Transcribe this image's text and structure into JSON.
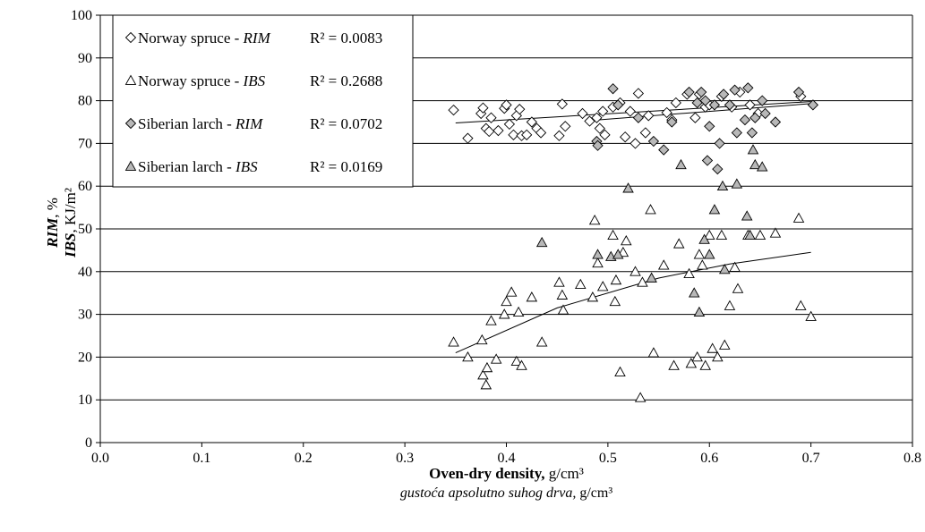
{
  "chart_data": {
    "type": "scatter",
    "xlim": [
      0.0,
      0.8
    ],
    "ylim": [
      0,
      100
    ],
    "x_ticks": [
      "0.0",
      "0.1",
      "0.2",
      "0.3",
      "0.4",
      "0.5",
      "0.6",
      "0.7",
      "0.8"
    ],
    "y_ticks": [
      "0",
      "10",
      "20",
      "30",
      "40",
      "50",
      "60",
      "70",
      "80",
      "90",
      "100"
    ],
    "grid": "horizontal",
    "legend_position": "top-left",
    "xlabel": {
      "line1_bold": "Oven-dry density,",
      "line1_unit": " g/cm³",
      "line2_italic": "gustoća apsolutno suhog drva,",
      "line2_unit": " g/cm³"
    },
    "ylabel": {
      "line1_bold_italic": "RIM",
      "line1_unit": ", %",
      "line2_bold_italic": "IBS",
      "line2_unit": ", KJ/m²"
    },
    "series": [
      {
        "name": "Norway spruce - RIM",
        "name_plain": "Norway spruce - ",
        "name_italic": "RIM",
        "r2": "R² = 0.0083",
        "marker": "diamond",
        "fill": "#ffffff",
        "trend": [
          [
            0.35,
            74.8
          ],
          [
            0.7,
            79.8
          ]
        ],
        "points": [
          [
            0.348,
            77.8
          ],
          [
            0.362,
            71.2
          ],
          [
            0.375,
            77.0
          ],
          [
            0.377,
            78.3
          ],
          [
            0.38,
            73.5
          ],
          [
            0.383,
            72.8
          ],
          [
            0.385,
            76.0
          ],
          [
            0.392,
            73.0
          ],
          [
            0.398,
            78.2
          ],
          [
            0.4,
            79.0
          ],
          [
            0.403,
            74.5
          ],
          [
            0.407,
            72.0
          ],
          [
            0.41,
            76.5
          ],
          [
            0.413,
            78.0
          ],
          [
            0.415,
            71.8
          ],
          [
            0.42,
            72.0
          ],
          [
            0.425,
            75.0
          ],
          [
            0.43,
            73.5
          ],
          [
            0.434,
            72.5
          ],
          [
            0.452,
            71.8
          ],
          [
            0.455,
            79.2
          ],
          [
            0.458,
            74.0
          ],
          [
            0.475,
            77.0
          ],
          [
            0.482,
            75.2
          ],
          [
            0.489,
            76.0
          ],
          [
            0.492,
            73.5
          ],
          [
            0.495,
            77.5
          ],
          [
            0.497,
            72.0
          ],
          [
            0.505,
            78.5
          ],
          [
            0.512,
            79.5
          ],
          [
            0.517,
            71.5
          ],
          [
            0.522,
            77.5
          ],
          [
            0.527,
            70.0
          ],
          [
            0.53,
            81.7
          ],
          [
            0.537,
            72.5
          ],
          [
            0.54,
            76.5
          ],
          [
            0.558,
            77.2
          ],
          [
            0.563,
            75.5
          ],
          [
            0.567,
            79.5
          ],
          [
            0.578,
            81.5
          ],
          [
            0.586,
            76.0
          ],
          [
            0.59,
            81.5
          ],
          [
            0.596,
            78.5
          ],
          [
            0.6,
            79.0
          ],
          [
            0.612,
            81.0
          ],
          [
            0.622,
            78.5
          ],
          [
            0.63,
            82.0
          ],
          [
            0.64,
            79.0
          ],
          [
            0.648,
            77.0
          ],
          [
            0.69,
            81.0
          ]
        ]
      },
      {
        "name": "Norway spruce - IBS",
        "name_plain": "Norway spruce - ",
        "name_italic": "IBS",
        "r2": "R² = 0.2688",
        "marker": "triangle",
        "fill": "#ffffff",
        "trend": [
          [
            0.35,
            21.0
          ],
          [
            0.45,
            31.5
          ],
          [
            0.55,
            38.5
          ],
          [
            0.62,
            41.8
          ],
          [
            0.7,
            44.5
          ]
        ],
        "points": [
          [
            0.348,
            23.5
          ],
          [
            0.362,
            20.0
          ],
          [
            0.376,
            24.0
          ],
          [
            0.377,
            15.8
          ],
          [
            0.38,
            13.5
          ],
          [
            0.381,
            17.5
          ],
          [
            0.385,
            28.5
          ],
          [
            0.39,
            19.5
          ],
          [
            0.398,
            30.0
          ],
          [
            0.4,
            33.0
          ],
          [
            0.405,
            35.2
          ],
          [
            0.41,
            19.0
          ],
          [
            0.412,
            30.5
          ],
          [
            0.415,
            18.0
          ],
          [
            0.425,
            34.0
          ],
          [
            0.435,
            23.5
          ],
          [
            0.452,
            37.5
          ],
          [
            0.455,
            34.5
          ],
          [
            0.456,
            31.0
          ],
          [
            0.473,
            37.0
          ],
          [
            0.485,
            34.0
          ],
          [
            0.487,
            52.0
          ],
          [
            0.49,
            42.0
          ],
          [
            0.495,
            36.5
          ],
          [
            0.505,
            48.5
          ],
          [
            0.507,
            33.0
          ],
          [
            0.508,
            38.0
          ],
          [
            0.512,
            16.5
          ],
          [
            0.515,
            44.5
          ],
          [
            0.518,
            47.2
          ],
          [
            0.527,
            40.0
          ],
          [
            0.532,
            10.5
          ],
          [
            0.534,
            37.5
          ],
          [
            0.542,
            54.5
          ],
          [
            0.545,
            21.0
          ],
          [
            0.555,
            41.5
          ],
          [
            0.565,
            18.0
          ],
          [
            0.57,
            46.5
          ],
          [
            0.58,
            39.5
          ],
          [
            0.582,
            18.5
          ],
          [
            0.588,
            20.0
          ],
          [
            0.59,
            44.0
          ],
          [
            0.593,
            41.5
          ],
          [
            0.596,
            18.0
          ],
          [
            0.6,
            48.5
          ],
          [
            0.603,
            22.0
          ],
          [
            0.608,
            20.0
          ],
          [
            0.612,
            48.5
          ],
          [
            0.615,
            22.8
          ],
          [
            0.62,
            32.0
          ],
          [
            0.625,
            41.0
          ],
          [
            0.628,
            36.0
          ],
          [
            0.638,
            48.5
          ],
          [
            0.65,
            48.5
          ],
          [
            0.665,
            49.0
          ],
          [
            0.688,
            52.5
          ],
          [
            0.69,
            32.0
          ],
          [
            0.7,
            29.5
          ]
        ]
      },
      {
        "name": "Siberian larch - RIM",
        "name_plain": "Siberian larch - ",
        "name_italic": "RIM",
        "r2": "R² = 0.0702",
        "marker": "diamond",
        "fill": "#b8b8b8",
        "trend": [
          [
            0.49,
            75.5
          ],
          [
            0.7,
            79.3
          ]
        ],
        "points": [
          [
            0.489,
            70.5
          ],
          [
            0.49,
            69.5
          ],
          [
            0.505,
            82.8
          ],
          [
            0.51,
            79.0
          ],
          [
            0.53,
            76.0
          ],
          [
            0.545,
            70.5
          ],
          [
            0.555,
            68.5
          ],
          [
            0.563,
            75.0
          ],
          [
            0.58,
            82.0
          ],
          [
            0.588,
            79.5
          ],
          [
            0.592,
            82.0
          ],
          [
            0.596,
            80.0
          ],
          [
            0.6,
            74.0
          ],
          [
            0.605,
            79.0
          ],
          [
            0.608,
            64.0
          ],
          [
            0.61,
            70.0
          ],
          [
            0.614,
            81.5
          ],
          [
            0.62,
            79.0
          ],
          [
            0.625,
            82.5
          ],
          [
            0.627,
            72.5
          ],
          [
            0.635,
            75.5
          ],
          [
            0.638,
            83.0
          ],
          [
            0.642,
            72.5
          ],
          [
            0.645,
            76.0
          ],
          [
            0.652,
            80.0
          ],
          [
            0.655,
            77.0
          ],
          [
            0.665,
            75.0
          ],
          [
            0.688,
            82.0
          ],
          [
            0.702,
            79.0
          ],
          [
            0.598,
            66.0
          ]
        ]
      },
      {
        "name": "Siberian larch - IBS",
        "name_plain": "Siberian larch - ",
        "name_italic": "IBS",
        "r2": "R² = 0.0169",
        "marker": "triangle",
        "fill": "#b8b8b8",
        "trend": null,
        "points": [
          [
            0.435,
            46.8
          ],
          [
            0.49,
            44.0
          ],
          [
            0.503,
            43.5
          ],
          [
            0.51,
            44.0
          ],
          [
            0.52,
            59.5
          ],
          [
            0.543,
            38.5
          ],
          [
            0.572,
            65.0
          ],
          [
            0.595,
            47.5
          ],
          [
            0.605,
            54.5
          ],
          [
            0.613,
            60.0
          ],
          [
            0.615,
            40.5
          ],
          [
            0.627,
            60.5
          ],
          [
            0.637,
            53.0
          ],
          [
            0.64,
            48.5
          ],
          [
            0.645,
            65.0
          ],
          [
            0.652,
            64.5
          ],
          [
            0.643,
            68.5
          ],
          [
            0.6,
            44.0
          ],
          [
            0.585,
            35.0
          ],
          [
            0.59,
            30.5
          ]
        ]
      }
    ]
  }
}
